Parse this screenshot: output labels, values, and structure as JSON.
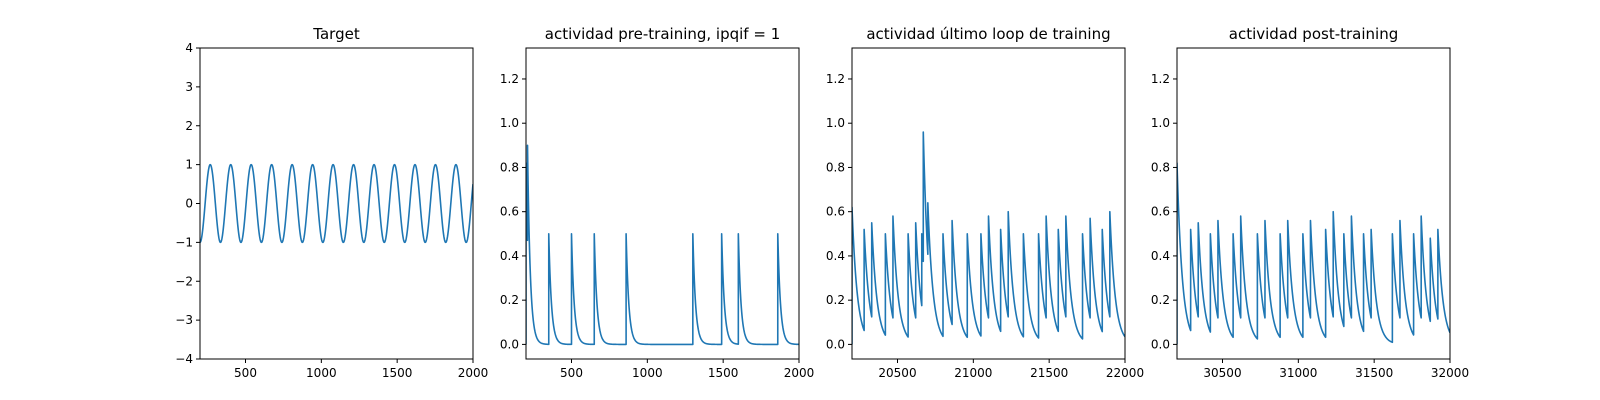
{
  "chart_data": [
    {
      "type": "line",
      "title": "Target",
      "xlim": [
        200,
        2000
      ],
      "ylim": [
        -4,
        4
      ],
      "xticks": [
        500,
        1000,
        1500,
        2000
      ],
      "yticks": [
        -4,
        -3,
        -2,
        -1,
        0,
        1,
        2,
        3,
        4
      ],
      "xtick_labels": [
        "500",
        "1000",
        "1500",
        "2000"
      ],
      "ytick_labels": [
        "−4",
        "−3",
        "−2",
        "−1",
        "0",
        "1",
        "2",
        "3",
        "4"
      ],
      "series": [
        {
          "signal": "sine",
          "x_start": 200,
          "x_end": 2000,
          "period": 135,
          "amplitude": 1.0,
          "value_at_start": -1.0
        }
      ]
    },
    {
      "type": "line",
      "title": "actividad pre-training, ipqif = 1",
      "xlim": [
        200,
        2000
      ],
      "ylim": [
        -0.066,
        1.34
      ],
      "xticks": [
        500,
        1000,
        1500,
        2000
      ],
      "yticks": [
        0.0,
        0.2,
        0.4,
        0.6,
        0.8,
        1.0,
        1.2
      ],
      "xtick_labels": [
        "500",
        "1000",
        "1500",
        "2000"
      ],
      "ytick_labels": [
        "0.0",
        "0.2",
        "0.4",
        "0.6",
        "0.8",
        "1.0",
        "1.2"
      ],
      "series": [
        {
          "signal": "decaying spikes",
          "x_start": 200,
          "x_end": 2000,
          "decay_constant": 18,
          "spikes": [
            {
              "x": 200,
              "peak": 0.82
            },
            {
              "x": 210,
              "peak": 0.9
            },
            {
              "x": 350,
              "peak": 0.5
            },
            {
              "x": 500,
              "peak": 0.5
            },
            {
              "x": 650,
              "peak": 0.5
            },
            {
              "x": 860,
              "peak": 0.5
            },
            {
              "x": 1300,
              "peak": 0.5
            },
            {
              "x": 1490,
              "peak": 0.5
            },
            {
              "x": 1600,
              "peak": 0.5
            },
            {
              "x": 1860,
              "peak": 0.5
            }
          ]
        }
      ]
    },
    {
      "type": "line",
      "title": "actividad último loop de training",
      "xlim": [
        20200,
        22000
      ],
      "ylim": [
        -0.066,
        1.34
      ],
      "xticks": [
        20500,
        21000,
        21500,
        22000
      ],
      "yticks": [
        0.0,
        0.2,
        0.4,
        0.6,
        0.8,
        1.0,
        1.2
      ],
      "xtick_labels": [
        "20500",
        "21000",
        "21500",
        "22000"
      ],
      "ytick_labels": [
        "0.0",
        "0.2",
        "0.4",
        "0.6",
        "0.8",
        "1.0",
        "1.2"
      ],
      "series": [
        {
          "signal": "decaying spikes",
          "x_start": 20200,
          "x_end": 22000,
          "decay_constant": 35,
          "spikes": [
            {
              "x": 20200,
              "peak": 0.62
            },
            {
              "x": 20280,
              "peak": 0.52
            },
            {
              "x": 20330,
              "peak": 0.55
            },
            {
              "x": 20420,
              "peak": 0.5
            },
            {
              "x": 20470,
              "peak": 0.58
            },
            {
              "x": 20570,
              "peak": 0.5
            },
            {
              "x": 20620,
              "peak": 0.55
            },
            {
              "x": 20660,
              "peak": 0.5
            },
            {
              "x": 20670,
              "peak": 0.96
            },
            {
              "x": 20700,
              "peak": 0.64
            },
            {
              "x": 20800,
              "peak": 0.5
            },
            {
              "x": 20860,
              "peak": 0.56
            },
            {
              "x": 20960,
              "peak": 0.5
            },
            {
              "x": 21050,
              "peak": 0.5
            },
            {
              "x": 21100,
              "peak": 0.58
            },
            {
              "x": 21180,
              "peak": 0.52
            },
            {
              "x": 21230,
              "peak": 0.6
            },
            {
              "x": 21330,
              "peak": 0.5
            },
            {
              "x": 21430,
              "peak": 0.5
            },
            {
              "x": 21480,
              "peak": 0.58
            },
            {
              "x": 21560,
              "peak": 0.52
            },
            {
              "x": 21610,
              "peak": 0.58
            },
            {
              "x": 21720,
              "peak": 0.5
            },
            {
              "x": 21770,
              "peak": 0.57
            },
            {
              "x": 21850,
              "peak": 0.52
            },
            {
              "x": 21900,
              "peak": 0.6
            }
          ]
        }
      ]
    },
    {
      "type": "line",
      "title": "actividad post-training",
      "xlim": [
        30200,
        32000
      ],
      "ylim": [
        -0.066,
        1.34
      ],
      "xticks": [
        30500,
        31000,
        31500,
        32000
      ],
      "yticks": [
        0.0,
        0.2,
        0.4,
        0.6,
        0.8,
        1.0,
        1.2
      ],
      "xtick_labels": [
        "30500",
        "31000",
        "31500",
        "32000"
      ],
      "ytick_labels": [
        "0.0",
        "0.2",
        "0.4",
        "0.6",
        "0.8",
        "1.0",
        "1.2"
      ],
      "series": [
        {
          "signal": "decaying spikes",
          "x_start": 30200,
          "x_end": 32000,
          "decay_constant": 35,
          "spikes": [
            {
              "x": 30200,
              "peak": 0.82
            },
            {
              "x": 30290,
              "peak": 0.52
            },
            {
              "x": 30340,
              "peak": 0.55
            },
            {
              "x": 30420,
              "peak": 0.5
            },
            {
              "x": 30470,
              "peak": 0.56
            },
            {
              "x": 30570,
              "peak": 0.5
            },
            {
              "x": 30620,
              "peak": 0.58
            },
            {
              "x": 30730,
              "peak": 0.5
            },
            {
              "x": 30780,
              "peak": 0.56
            },
            {
              "x": 30880,
              "peak": 0.5
            },
            {
              "x": 30930,
              "peak": 0.56
            },
            {
              "x": 31030,
              "peak": 0.5
            },
            {
              "x": 31080,
              "peak": 0.56
            },
            {
              "x": 31180,
              "peak": 0.52
            },
            {
              "x": 31230,
              "peak": 0.6
            },
            {
              "x": 31300,
              "peak": 0.5
            },
            {
              "x": 31350,
              "peak": 0.58
            },
            {
              "x": 31430,
              "peak": 0.5
            },
            {
              "x": 31480,
              "peak": 0.52
            },
            {
              "x": 31620,
              "peak": 0.5
            },
            {
              "x": 31670,
              "peak": 0.56
            },
            {
              "x": 31760,
              "peak": 0.5
            },
            {
              "x": 31810,
              "peak": 0.58
            },
            {
              "x": 31870,
              "peak": 0.48
            },
            {
              "x": 31920,
              "peak": 0.52
            }
          ]
        }
      ]
    }
  ]
}
